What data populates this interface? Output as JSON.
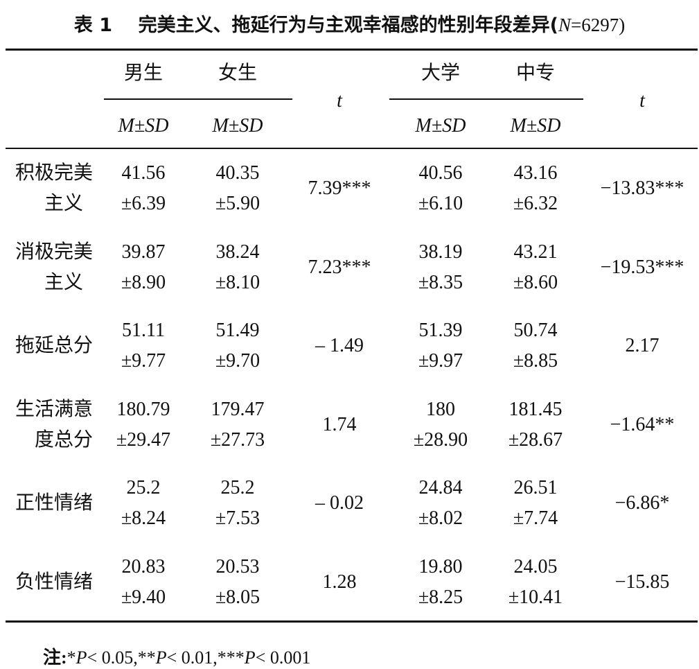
{
  "title": {
    "label": "表 1",
    "text": "完美主义、拖延行为与主观幸福感的性别年段差异(",
    "n": "N",
    "rest": "=6297)"
  },
  "header": {
    "groups": [
      "男生",
      "女生",
      "大学",
      "中专"
    ],
    "sub": "M±SD",
    "t": "t"
  },
  "rows": [
    {
      "label": [
        "积极完美",
        "主义"
      ],
      "male": [
        "41.56",
        "±6.39"
      ],
      "female": [
        "40.35",
        "±5.90"
      ],
      "t1": "7.39***",
      "college": [
        "40.56",
        "±6.10"
      ],
      "vocational": [
        "43.16",
        "±6.32"
      ],
      "t2": "−13.83***"
    },
    {
      "label": [
        "消极完美",
        "主义"
      ],
      "male": [
        "39.87",
        "±8.90"
      ],
      "female": [
        "38.24",
        "±8.10"
      ],
      "t1": "7.23***",
      "college": [
        "38.19",
        "±8.35"
      ],
      "vocational": [
        "43.21",
        "±8.60"
      ],
      "t2": "−19.53***"
    },
    {
      "label": [
        "拖延总分"
      ],
      "male": [
        "51.11",
        "±9.77"
      ],
      "female": [
        "51.49",
        "±9.70"
      ],
      "t1": "– 1.49",
      "college": [
        "51.39",
        "±9.97"
      ],
      "vocational": [
        "50.74",
        "±8.85"
      ],
      "t2": "2.17"
    },
    {
      "label": [
        "生活满意",
        "度总分"
      ],
      "male": [
        "180.79",
        "±29.47"
      ],
      "female": [
        "179.47",
        "±27.73"
      ],
      "t1": "1.74",
      "college": [
        "180",
        "±28.90"
      ],
      "vocational": [
        "181.45",
        "±28.67"
      ],
      "t2": "−1.64**"
    },
    {
      "label": [
        "正性情绪"
      ],
      "male": [
        "25.2",
        "±8.24"
      ],
      "female": [
        "25.2",
        "±7.53"
      ],
      "t1": "– 0.02",
      "college": [
        "24.84",
        "±8.02"
      ],
      "vocational": [
        "26.51",
        "±7.74"
      ],
      "t2": "−6.86*"
    },
    {
      "label": [
        "负性情绪"
      ],
      "male": [
        "20.83",
        "±9.40"
      ],
      "female": [
        "20.53",
        "±8.05"
      ],
      "t1": "1.28",
      "college": [
        "19.80",
        "±8.25"
      ],
      "vocational": [
        "24.05",
        "±10.41"
      ],
      "t2": "−15.85"
    }
  ],
  "note": {
    "label": "注:",
    "items": [
      [
        "*",
        "P",
        "< 0.05,"
      ],
      [
        "**",
        "P",
        "< 0.01,"
      ],
      [
        "***",
        "P",
        "< 0.001"
      ]
    ]
  }
}
